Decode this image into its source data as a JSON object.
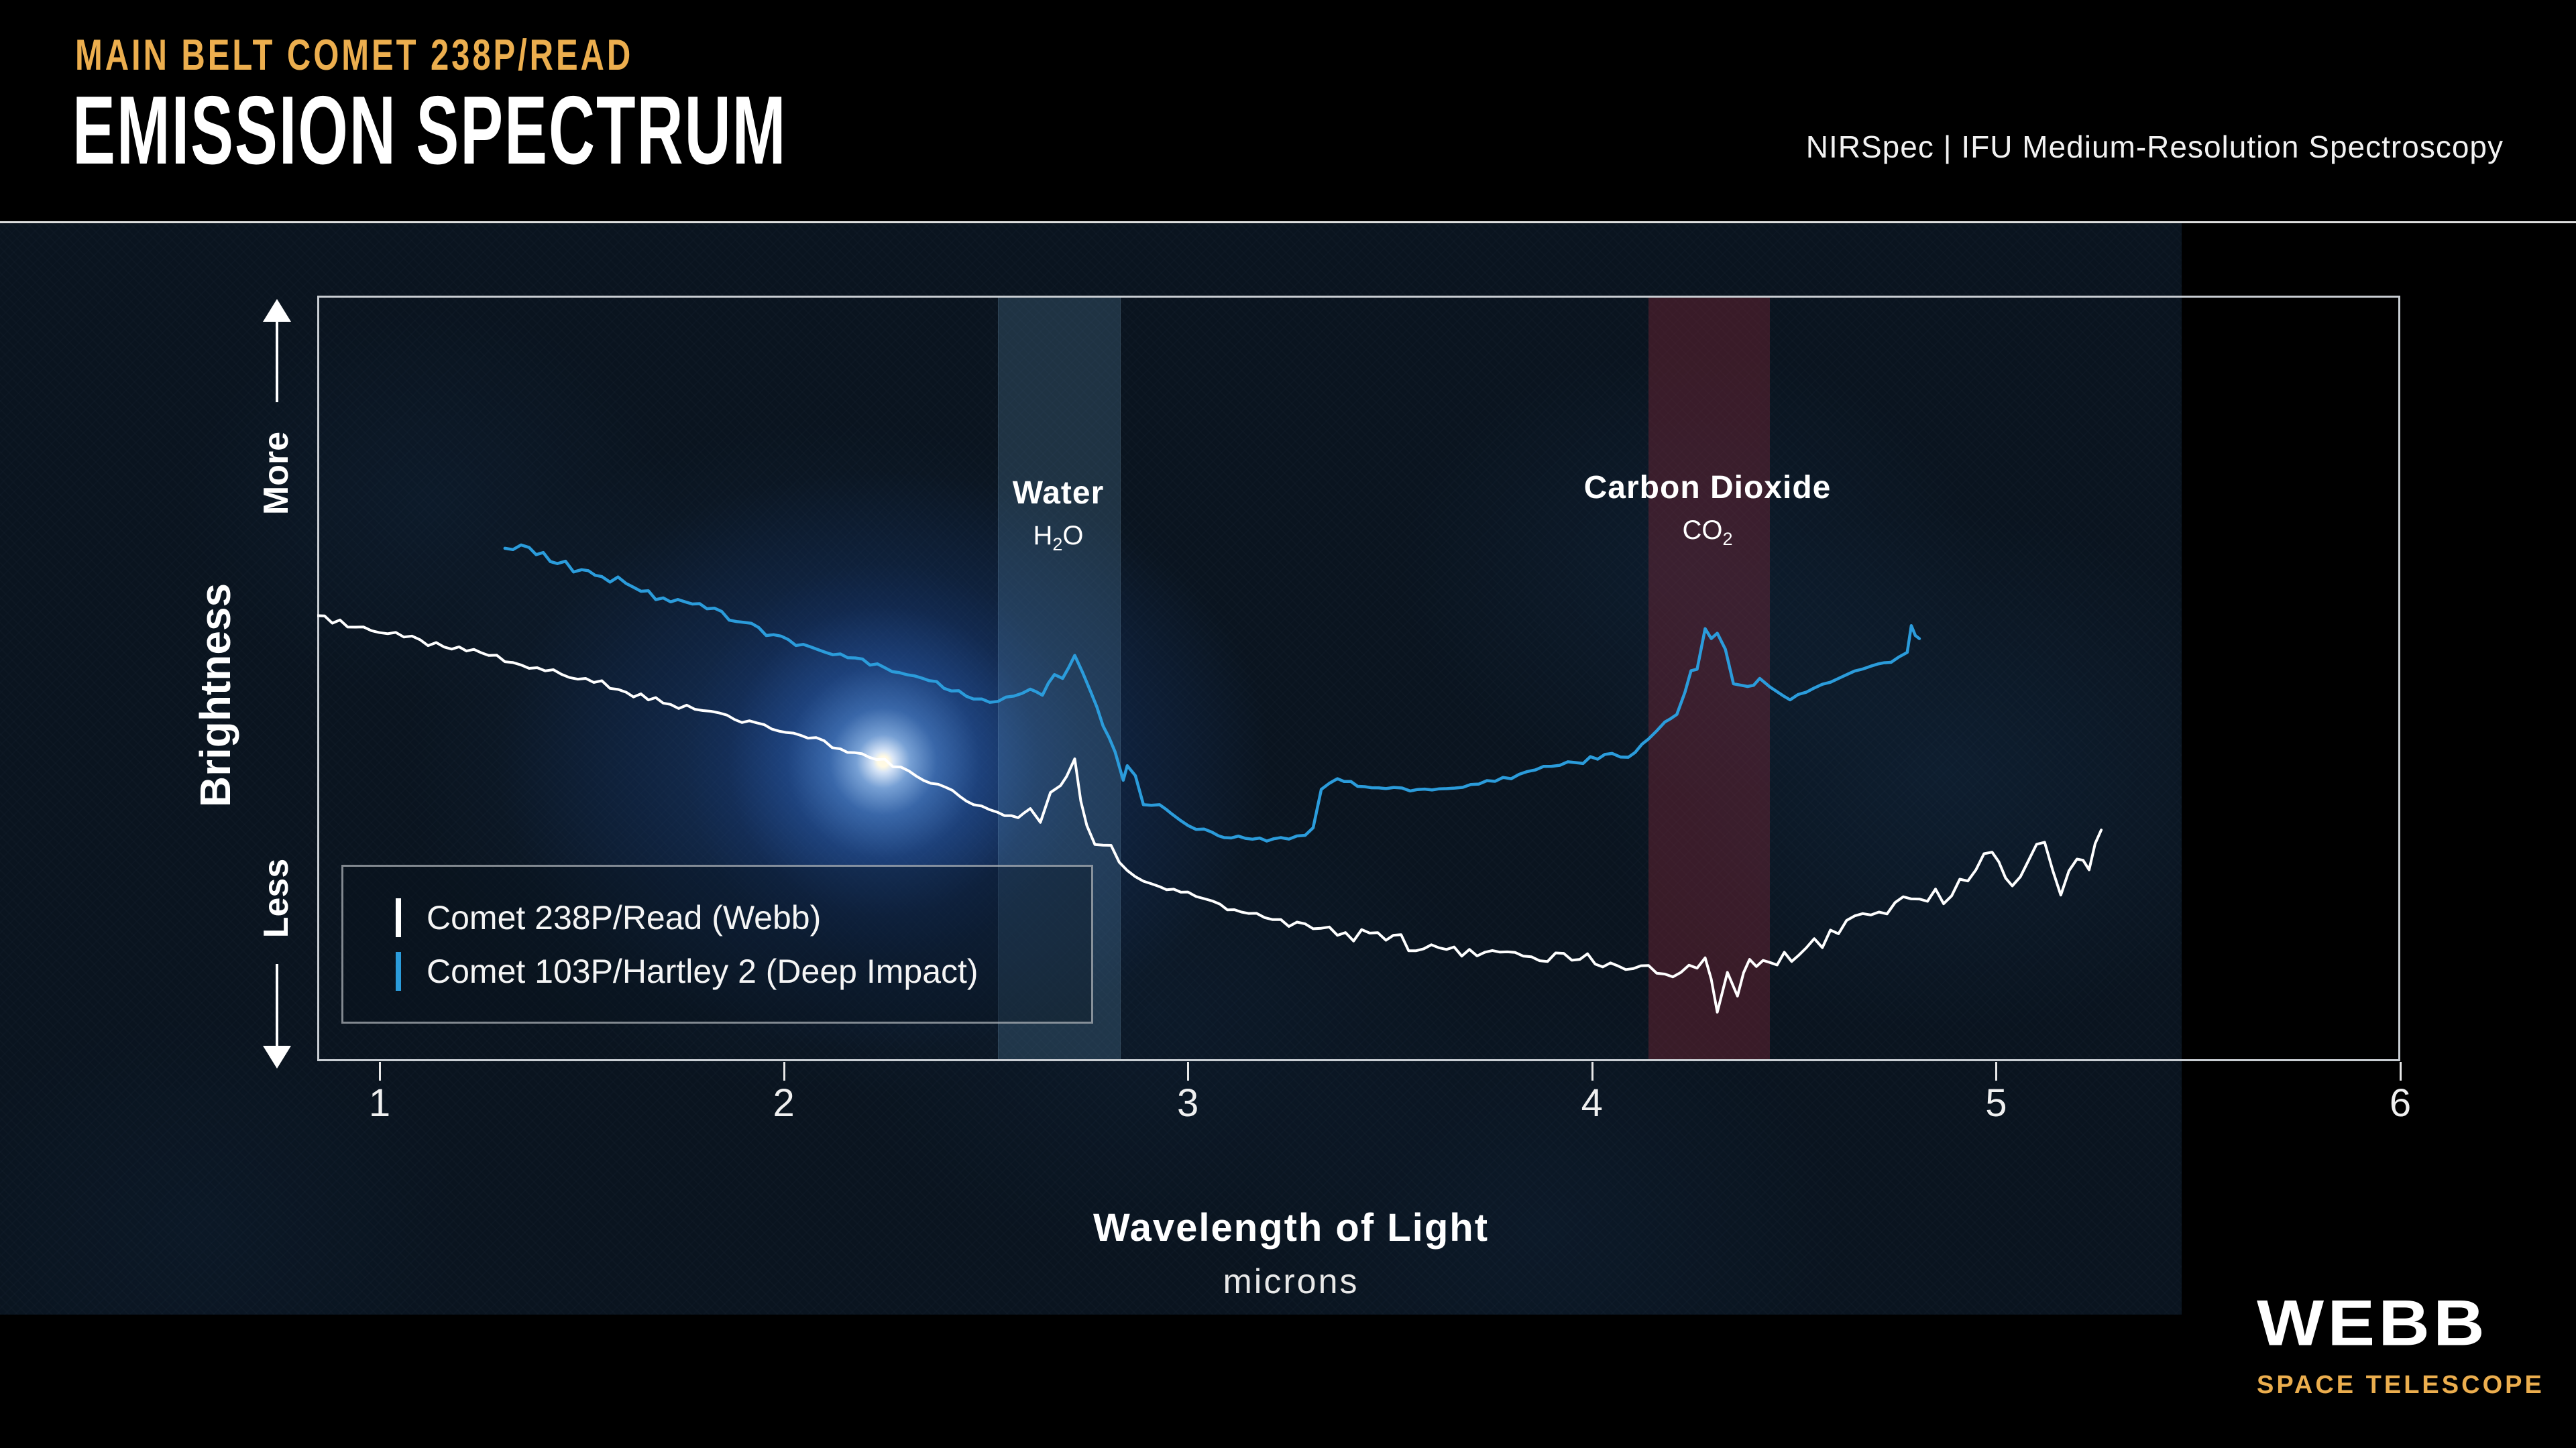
{
  "header": {
    "kicker": "MAIN BELT COMET 238P/READ",
    "title": "EMISSION SPECTRUM",
    "instrument": "NIRSpec | IFU Medium-Resolution Spectroscopy"
  },
  "axis": {
    "y_label": "Brightness",
    "y_more": "More",
    "y_less": "Less",
    "x_title": "Wavelength of Light",
    "x_unit": "microns",
    "x_ticks": [
      "1",
      "2",
      "3",
      "4",
      "5",
      "6"
    ]
  },
  "annotations": {
    "water": {
      "name": "Water",
      "formula": {
        "main": "H",
        "sub": "2",
        "tail": "O"
      },
      "band_microns": [
        2.53,
        2.83
      ]
    },
    "carbon_dioxide": {
      "name": "Carbon Dioxide",
      "formula": {
        "main": "CO",
        "sub": "2",
        "tail": ""
      },
      "band_microns": [
        4.14,
        4.44
      ]
    }
  },
  "legend": {
    "items": [
      {
        "label": "Comet 238P/Read (Webb)",
        "color": "#FFFFFF"
      },
      {
        "label": "Comet 103P/Hartley 2 (Deep Impact)",
        "color": "#2B9CDB"
      }
    ]
  },
  "logo": {
    "wordmark": "WEBB",
    "tagline": "SPACE TELESCOPE"
  },
  "colors": {
    "accent_gold": "#ECAE4E",
    "webb_blue": "#2B9CDB",
    "spectrum_white": "#FFFFFF",
    "water_band_fill": "rgba(115,175,215,0.20)",
    "co2_band_fill": "rgba(160,45,58,0.32)"
  },
  "chart_data": {
    "type": "line",
    "title": "Main Belt Comet 238P/Read — Emission Spectrum",
    "xlabel": "Wavelength of Light (microns)",
    "ylabel": "Brightness (relative; axis unlabeled, Less to More)",
    "xlim": [
      0.845,
      6.0
    ],
    "ylim": [
      0,
      1
    ],
    "grid": false,
    "legend_position": "lower-left",
    "x_tick_values": [
      1,
      2,
      3,
      4,
      5,
      6
    ],
    "band_annotations": [
      {
        "label": "Water (H2O)",
        "band_microns": [
          2.53,
          2.83
        ]
      },
      {
        "label": "Carbon Dioxide (CO2)",
        "band_microns": [
          4.14,
          4.44
        ]
      }
    ],
    "series": [
      {
        "name": "Comet 238P/Read (Webb)",
        "color": "#FFFFFF",
        "points": [
          [
            0.845,
            0.582
          ],
          [
            0.94,
            0.567
          ],
          [
            1.06,
            0.554
          ],
          [
            1.16,
            0.541
          ],
          [
            1.27,
            0.53
          ],
          [
            1.39,
            0.514
          ],
          [
            1.51,
            0.5
          ],
          [
            1.61,
            0.482
          ],
          [
            1.72,
            0.466
          ],
          [
            1.8,
            0.458
          ],
          [
            1.86,
            0.452
          ],
          [
            1.97,
            0.434
          ],
          [
            2.06,
            0.422
          ],
          [
            2.14,
            0.408
          ],
          [
            2.23,
            0.394
          ],
          [
            2.31,
            0.379
          ],
          [
            2.4,
            0.358
          ],
          [
            2.47,
            0.335
          ],
          [
            2.53,
            0.325
          ],
          [
            2.58,
            0.318
          ],
          [
            2.61,
            0.33
          ],
          [
            2.635,
            0.312
          ],
          [
            2.66,
            0.351
          ],
          [
            2.685,
            0.36
          ],
          [
            2.7,
            0.372
          ],
          [
            2.72,
            0.395
          ],
          [
            2.735,
            0.34
          ],
          [
            2.75,
            0.308
          ],
          [
            2.77,
            0.283
          ],
          [
            2.81,
            0.282
          ],
          [
            2.83,
            0.26
          ],
          [
            2.87,
            0.241
          ],
          [
            2.93,
            0.228
          ],
          [
            3.0,
            0.221
          ],
          [
            3.08,
            0.205
          ],
          [
            3.15,
            0.193
          ],
          [
            3.23,
            0.185
          ],
          [
            3.31,
            0.173
          ],
          [
            3.39,
            0.168
          ],
          [
            3.49,
            0.158
          ],
          [
            3.64,
            0.146
          ],
          [
            3.81,
            0.142
          ],
          [
            3.97,
            0.133
          ],
          [
            4.14,
            0.125
          ],
          [
            4.22,
            0.116
          ],
          [
            4.28,
            0.135
          ],
          [
            4.31,
            0.064
          ],
          [
            4.335,
            0.116
          ],
          [
            4.36,
            0.085
          ],
          [
            4.39,
            0.133
          ],
          [
            4.44,
            0.129
          ],
          [
            4.53,
            0.148
          ],
          [
            4.69,
            0.191
          ],
          [
            4.79,
            0.212
          ],
          [
            4.89,
            0.216
          ],
          [
            4.95,
            0.25
          ],
          [
            4.99,
            0.273
          ],
          [
            5.04,
            0.229
          ],
          [
            5.08,
            0.262
          ],
          [
            5.12,
            0.286
          ],
          [
            5.16,
            0.217
          ],
          [
            5.2,
            0.264
          ],
          [
            5.23,
            0.25
          ],
          [
            5.26,
            0.302
          ]
        ]
      },
      {
        "name": "Comet 103P/Hartley 2 (Deep Impact)",
        "color": "#2B9CDB",
        "points": [
          [
            1.31,
            0.67
          ],
          [
            1.37,
            0.671
          ],
          [
            1.44,
            0.65
          ],
          [
            1.5,
            0.642
          ],
          [
            1.55,
            0.633
          ],
          [
            1.61,
            0.624
          ],
          [
            1.72,
            0.6
          ],
          [
            1.81,
            0.591
          ],
          [
            1.92,
            0.572
          ],
          [
            2.03,
            0.543
          ],
          [
            2.14,
            0.532
          ],
          [
            2.25,
            0.514
          ],
          [
            2.36,
            0.497
          ],
          [
            2.47,
            0.473
          ],
          [
            2.53,
            0.47
          ],
          [
            2.57,
            0.477
          ],
          [
            2.61,
            0.486
          ],
          [
            2.64,
            0.478
          ],
          [
            2.67,
            0.505
          ],
          [
            2.69,
            0.5
          ],
          [
            2.72,
            0.53
          ],
          [
            2.76,
            0.482
          ],
          [
            2.79,
            0.438
          ],
          [
            2.82,
            0.404
          ],
          [
            2.84,
            0.367
          ],
          [
            2.85,
            0.386
          ],
          [
            2.87,
            0.373
          ],
          [
            2.89,
            0.335
          ],
          [
            2.93,
            0.335
          ],
          [
            2.96,
            0.323
          ],
          [
            3.0,
            0.308
          ],
          [
            3.06,
            0.299
          ],
          [
            3.09,
            0.292
          ],
          [
            3.16,
            0.29
          ],
          [
            3.23,
            0.292
          ],
          [
            3.29,
            0.295
          ],
          [
            3.31,
            0.305
          ],
          [
            3.33,
            0.355
          ],
          [
            3.35,
            0.363
          ],
          [
            3.37,
            0.369
          ],
          [
            3.42,
            0.359
          ],
          [
            3.49,
            0.356
          ],
          [
            3.55,
            0.353
          ],
          [
            3.64,
            0.356
          ],
          [
            3.72,
            0.362
          ],
          [
            3.8,
            0.369
          ],
          [
            3.88,
            0.385
          ],
          [
            3.96,
            0.39
          ],
          [
            4.05,
            0.402
          ],
          [
            4.09,
            0.397
          ],
          [
            4.14,
            0.421
          ],
          [
            4.18,
            0.443
          ],
          [
            4.21,
            0.453
          ],
          [
            4.23,
            0.482
          ],
          [
            4.245,
            0.51
          ],
          [
            4.26,
            0.512
          ],
          [
            4.28,
            0.565
          ],
          [
            4.295,
            0.552
          ],
          [
            4.31,
            0.559
          ],
          [
            4.33,
            0.538
          ],
          [
            4.35,
            0.493
          ],
          [
            4.37,
            0.491
          ],
          [
            4.4,
            0.491
          ],
          [
            4.415,
            0.5
          ],
          [
            4.44,
            0.489
          ],
          [
            4.46,
            0.482
          ],
          [
            4.49,
            0.472
          ],
          [
            4.51,
            0.479
          ],
          [
            4.53,
            0.482
          ],
          [
            4.61,
            0.5
          ],
          [
            4.69,
            0.516
          ],
          [
            4.74,
            0.521
          ],
          [
            4.78,
            0.534
          ],
          [
            4.79,
            0.569
          ],
          [
            4.8,
            0.556
          ],
          [
            4.81,
            0.552
          ]
        ]
      }
    ]
  }
}
